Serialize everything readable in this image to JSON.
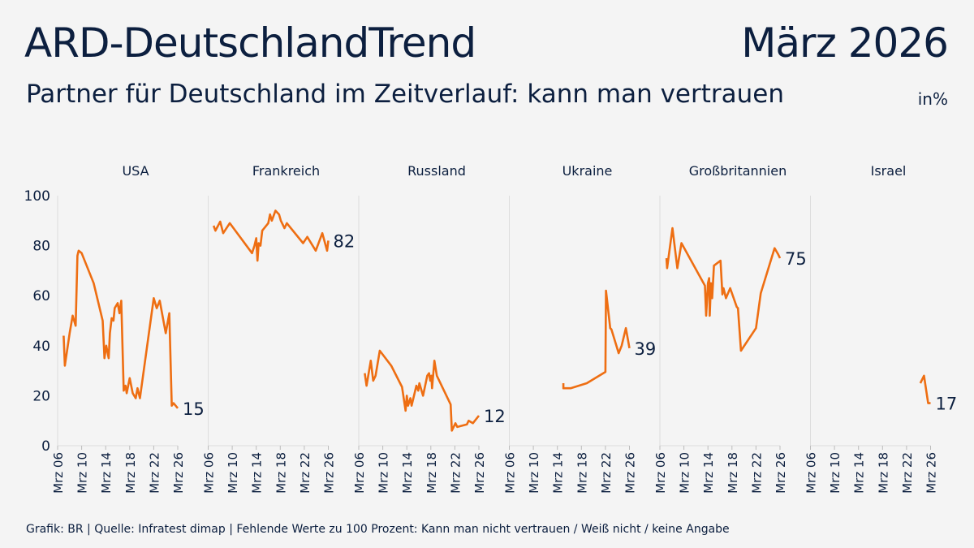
{
  "header": {
    "title": "ARD-DeutschlandTrend",
    "date": "März 2026",
    "subtitle": "Partner für Deutschland im Zeitverlauf: kann man vertrauen",
    "unit": "in%"
  },
  "footer": "Grafik: BR | Quelle: Infratest dimap | Fehlende Werte zu 100 Prozent:  Kann man nicht vertrauen / Weiß nicht / keine Angabe",
  "colors": {
    "line": "#ee6e12",
    "text": "#0c1f3f",
    "grid": "#dddddd"
  },
  "chart_data": {
    "type": "line",
    "layout": "small-multiples",
    "ylim": [
      0,
      100
    ],
    "yticks": [
      0,
      20,
      40,
      60,
      80,
      100
    ],
    "xlim": [
      2006,
      2026
    ],
    "xticks": [
      "Mrz 06",
      "Mrz 10",
      "Mrz 14",
      "Mrz 18",
      "Mrz 22",
      "Mrz 26"
    ],
    "panels": [
      {
        "name": "USA",
        "last_label": "15",
        "points": [
          [
            2007.0,
            44
          ],
          [
            2007.2,
            32
          ],
          [
            2008.0,
            45
          ],
          [
            2008.5,
            52
          ],
          [
            2009.0,
            48
          ],
          [
            2009.3,
            76
          ],
          [
            2009.5,
            78
          ],
          [
            2010.0,
            77
          ],
          [
            2012.0,
            65
          ],
          [
            2013.5,
            50
          ],
          [
            2013.8,
            35
          ],
          [
            2014.1,
            40
          ],
          [
            2014.5,
            35
          ],
          [
            2014.7,
            45
          ],
          [
            2015.0,
            51
          ],
          [
            2015.3,
            50
          ],
          [
            2015.5,
            55
          ],
          [
            2016.0,
            57
          ],
          [
            2016.3,
            53
          ],
          [
            2016.6,
            58
          ],
          [
            2017.0,
            22
          ],
          [
            2017.3,
            24
          ],
          [
            2017.5,
            21
          ],
          [
            2018.0,
            27
          ],
          [
            2018.5,
            21
          ],
          [
            2019.0,
            19
          ],
          [
            2019.3,
            23
          ],
          [
            2019.7,
            19
          ],
          [
            2022.0,
            59
          ],
          [
            2022.5,
            55
          ],
          [
            2023.0,
            58
          ],
          [
            2024.0,
            45
          ],
          [
            2024.6,
            53
          ],
          [
            2025.0,
            16
          ],
          [
            2025.3,
            17
          ],
          [
            2026.0,
            15
          ]
        ]
      },
      {
        "name": "Frankreich",
        "last_label": "82",
        "points": [
          [
            2006.9,
            88
          ],
          [
            2007.2,
            86
          ],
          [
            2008.0,
            89.6
          ],
          [
            2008.5,
            85
          ],
          [
            2009.6,
            89
          ],
          [
            2013.3,
            77
          ],
          [
            2013.7,
            80
          ],
          [
            2014.0,
            83
          ],
          [
            2014.2,
            74
          ],
          [
            2014.4,
            81
          ],
          [
            2014.7,
            80
          ],
          [
            2015.0,
            86
          ],
          [
            2016.0,
            89
          ],
          [
            2016.3,
            92.5
          ],
          [
            2016.6,
            90
          ],
          [
            2017.2,
            94
          ],
          [
            2017.8,
            92.5
          ],
          [
            2018.1,
            90
          ],
          [
            2018.7,
            87
          ],
          [
            2019.1,
            89
          ],
          [
            2021.8,
            81
          ],
          [
            2022.5,
            83.5
          ],
          [
            2023.9,
            78
          ],
          [
            2025.0,
            85
          ],
          [
            2025.8,
            78
          ],
          [
            2026.0,
            82
          ]
        ]
      },
      {
        "name": "Russland",
        "last_label": "12",
        "points": [
          [
            2007.0,
            29
          ],
          [
            2007.3,
            24
          ],
          [
            2008.0,
            34
          ],
          [
            2008.4,
            26
          ],
          [
            2008.8,
            28
          ],
          [
            2009.5,
            38
          ],
          [
            2011.4,
            32
          ],
          [
            2013.2,
            23.5
          ],
          [
            2013.8,
            14
          ],
          [
            2014.0,
            20
          ],
          [
            2014.2,
            16
          ],
          [
            2014.6,
            19
          ],
          [
            2014.8,
            16
          ],
          [
            2015.6,
            24
          ],
          [
            2015.9,
            22
          ],
          [
            2016.1,
            25
          ],
          [
            2016.7,
            20
          ],
          [
            2017.4,
            28
          ],
          [
            2017.7,
            29
          ],
          [
            2017.9,
            26
          ],
          [
            2018.1,
            28
          ],
          [
            2018.2,
            23
          ],
          [
            2018.6,
            34
          ],
          [
            2019.0,
            28
          ],
          [
            2021.3,
            16.5
          ],
          [
            2021.5,
            6
          ],
          [
            2022.1,
            9
          ],
          [
            2022.4,
            7.5
          ],
          [
            2024.0,
            8.5
          ],
          [
            2024.3,
            10
          ],
          [
            2025.0,
            9
          ],
          [
            2026.0,
            12
          ]
        ]
      },
      {
        "name": "Ukraine",
        "last_label": "39",
        "points": [
          [
            2015.0,
            25
          ],
          [
            2015.0,
            23
          ],
          [
            2016.2,
            23
          ],
          [
            2018.9,
            25
          ],
          [
            2022.0,
            29.5
          ],
          [
            2022.1,
            62
          ],
          [
            2022.8,
            47
          ],
          [
            2023.0,
            46.5
          ],
          [
            2024.2,
            37
          ],
          [
            2024.7,
            40
          ],
          [
            2025.4,
            47
          ],
          [
            2026.0,
            39
          ]
        ]
      },
      {
        "name": "Großbritannien",
        "last_label": "75",
        "points": [
          [
            2007.1,
            75
          ],
          [
            2007.2,
            71
          ],
          [
            2008.1,
            87
          ],
          [
            2008.9,
            71
          ],
          [
            2009.6,
            81
          ],
          [
            2013.5,
            64
          ],
          [
            2013.7,
            52
          ],
          [
            2014.0,
            65
          ],
          [
            2014.2,
            67
          ],
          [
            2014.3,
            52
          ],
          [
            2014.5,
            65
          ],
          [
            2014.7,
            59
          ],
          [
            2015.0,
            72
          ],
          [
            2016.1,
            74
          ],
          [
            2016.4,
            60.5
          ],
          [
            2016.6,
            63
          ],
          [
            2017.0,
            59
          ],
          [
            2017.7,
            63
          ],
          [
            2018.8,
            55.5
          ],
          [
            2019.0,
            55
          ],
          [
            2019.5,
            38
          ],
          [
            2022.0,
            47
          ],
          [
            2022.8,
            61
          ],
          [
            2025.1,
            79
          ],
          [
            2025.7,
            76.5
          ],
          [
            2026.0,
            75
          ]
        ]
      },
      {
        "name": "Israel",
        "last_label": "17",
        "points": [
          [
            2024.3,
            25
          ],
          [
            2024.9,
            28
          ],
          [
            2025.6,
            17
          ],
          [
            2026.0,
            17
          ]
        ]
      }
    ]
  }
}
